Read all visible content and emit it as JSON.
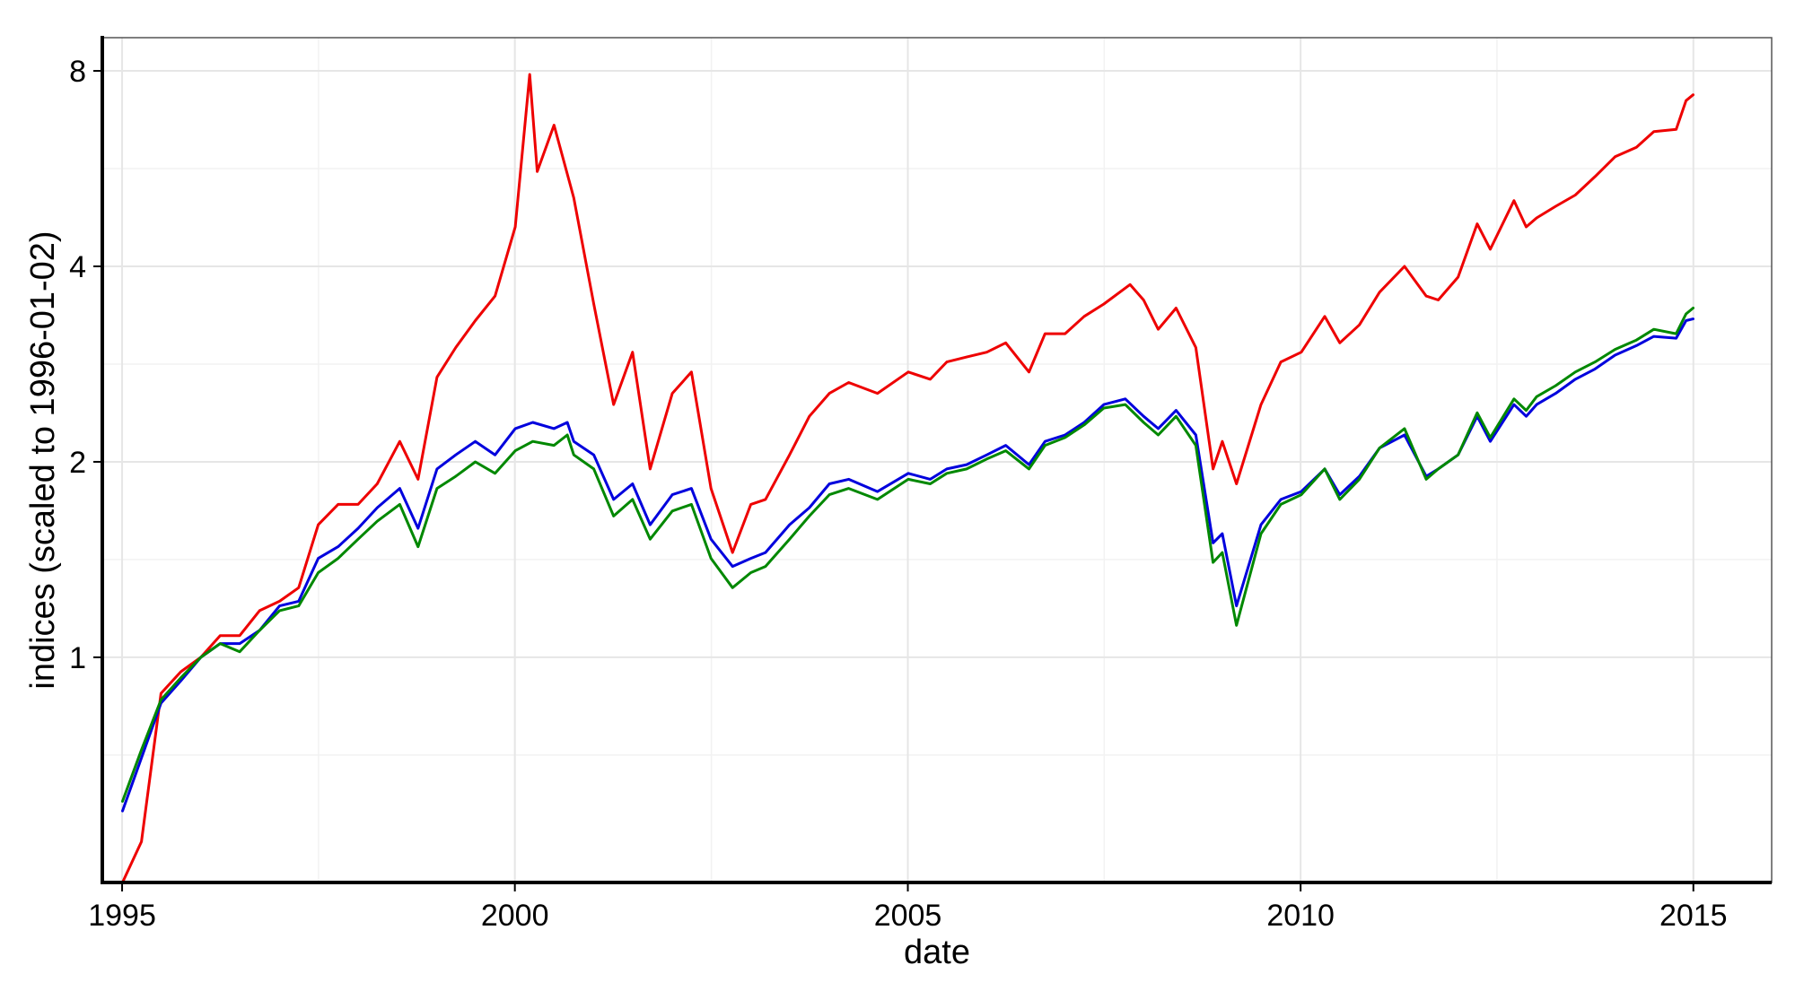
{
  "chart_data": {
    "type": "line",
    "title": "",
    "xlabel": "date",
    "ylabel": "indices (scaled to 1996-01-02)",
    "x_type": "date",
    "xlim": [
      "1994-10-01",
      "2015-12-31"
    ],
    "ylim": [
      0.45,
      9.0
    ],
    "y_scale": "log2",
    "x_ticks": [
      "1995",
      "2000",
      "2005",
      "2010",
      "2015"
    ],
    "y_ticks": [
      "1",
      "2",
      "4",
      "8"
    ],
    "grid": true,
    "legend": "none",
    "colors": {
      "red": "#ee0000",
      "blue": "#0000dd",
      "green": "#008800"
    },
    "series": [
      {
        "color": "#ee0000",
        "x": [
          "1995-01-03",
          "1995-04-01",
          "1995-07-01",
          "1995-10-01",
          "1996-01-02",
          "1996-04-01",
          "1996-07-01",
          "1996-10-01",
          "1997-01-02",
          "1997-04-01",
          "1997-07-01",
          "1997-10-01",
          "1998-01-02",
          "1998-04-01",
          "1998-07-15",
          "1998-10-08",
          "1999-01-04",
          "1999-04-01",
          "1999-07-01",
          "1999-10-01",
          "2000-01-03",
          "2000-03-10",
          "2000-04-14",
          "2000-07-01",
          "2000-10-01",
          "2001-01-02",
          "2001-04-04",
          "2001-07-01",
          "2001-09-21",
          "2002-01-02",
          "2002-04-01",
          "2002-07-01",
          "2002-10-09",
          "2003-01-02",
          "2003-03-11",
          "2003-07-01",
          "2003-10-01",
          "2004-01-02",
          "2004-04-01",
          "2004-08-13",
          "2005-01-03",
          "2005-04-15",
          "2005-07-01",
          "2005-10-01",
          "2006-01-03",
          "2006-04-01",
          "2006-07-18",
          "2006-10-01",
          "2007-01-02",
          "2007-04-01",
          "2007-07-01",
          "2007-10-31",
          "2008-01-02",
          "2008-03-10",
          "2008-06-01",
          "2008-09-01",
          "2008-11-20",
          "2009-01-02",
          "2009-03-09",
          "2009-07-01",
          "2009-10-01",
          "2010-01-04",
          "2010-04-23",
          "2010-07-02",
          "2010-10-01",
          "2011-01-03",
          "2011-04-29",
          "2011-08-08",
          "2011-10-03",
          "2012-01-03",
          "2012-04-01",
          "2012-06-01",
          "2012-09-19",
          "2012-11-15",
          "2013-01-02",
          "2013-04-01",
          "2013-07-01",
          "2013-10-01",
          "2014-01-02",
          "2014-04-11",
          "2014-07-01",
          "2014-10-13",
          "2014-11-28",
          "2014-12-31"
        ],
        "y": [
          0.45,
          0.52,
          0.88,
          0.95,
          1.0,
          1.08,
          1.08,
          1.18,
          1.22,
          1.28,
          1.6,
          1.72,
          1.72,
          1.85,
          2.15,
          1.88,
          2.7,
          3.0,
          3.3,
          3.6,
          4.6,
          7.9,
          5.6,
          6.6,
          5.1,
          3.5,
          2.45,
          2.95,
          1.95,
          2.55,
          2.75,
          1.82,
          1.45,
          1.72,
          1.75,
          2.05,
          2.35,
          2.55,
          2.65,
          2.55,
          2.75,
          2.68,
          2.85,
          2.9,
          2.95,
          3.05,
          2.75,
          3.15,
          3.15,
          3.35,
          3.5,
          3.75,
          3.55,
          3.2,
          3.45,
          3.0,
          1.95,
          2.15,
          1.85,
          2.45,
          2.85,
          2.95,
          3.35,
          3.05,
          3.25,
          3.65,
          4.0,
          3.6,
          3.55,
          3.85,
          4.65,
          4.25,
          5.05,
          4.6,
          4.75,
          4.95,
          5.15,
          5.5,
          5.9,
          6.1,
          6.45,
          6.5,
          7.2,
          7.35
        ]
      },
      {
        "color": "#0000dd",
        "x": [
          "1995-01-03",
          "1995-04-01",
          "1995-07-01",
          "1995-10-01",
          "1996-01-02",
          "1996-04-01",
          "1996-07-01",
          "1996-10-01",
          "1997-01-02",
          "1997-04-01",
          "1997-07-01",
          "1997-10-01",
          "1998-01-02",
          "1998-04-01",
          "1998-07-15",
          "1998-10-08",
          "1999-01-04",
          "1999-04-01",
          "1999-07-01",
          "1999-10-01",
          "2000-01-03",
          "2000-03-24",
          "2000-07-01",
          "2000-09-01",
          "2000-10-01",
          "2001-01-02",
          "2001-04-04",
          "2001-07-01",
          "2001-09-21",
          "2002-01-02",
          "2002-04-01",
          "2002-07-01",
          "2002-10-09",
          "2003-01-02",
          "2003-03-11",
          "2003-07-01",
          "2003-10-01",
          "2004-01-02",
          "2004-04-01",
          "2004-08-13",
          "2005-01-03",
          "2005-04-15",
          "2005-07-01",
          "2005-10-01",
          "2006-01-03",
          "2006-04-01",
          "2006-07-18",
          "2006-10-01",
          "2007-01-02",
          "2007-04-01",
          "2007-07-01",
          "2007-10-09",
          "2008-01-02",
          "2008-03-10",
          "2008-06-01",
          "2008-09-01",
          "2008-11-20",
          "2009-01-02",
          "2009-03-09",
          "2009-07-01",
          "2009-10-01",
          "2010-01-04",
          "2010-04-23",
          "2010-07-02",
          "2010-10-01",
          "2011-01-03",
          "2011-04-29",
          "2011-08-08",
          "2011-10-03",
          "2012-01-03",
          "2012-04-01",
          "2012-06-01",
          "2012-09-19",
          "2012-11-15",
          "2013-01-02",
          "2013-04-01",
          "2013-07-01",
          "2013-10-01",
          "2014-01-02",
          "2014-04-11",
          "2014-07-01",
          "2014-10-13",
          "2014-11-28",
          "2014-12-31"
        ],
        "y": [
          0.58,
          0.7,
          0.85,
          0.92,
          1.0,
          1.05,
          1.05,
          1.1,
          1.2,
          1.22,
          1.42,
          1.48,
          1.58,
          1.7,
          1.82,
          1.58,
          1.95,
          2.05,
          2.15,
          2.05,
          2.25,
          2.3,
          2.25,
          2.3,
          2.15,
          2.05,
          1.75,
          1.85,
          1.6,
          1.78,
          1.82,
          1.52,
          1.38,
          1.42,
          1.45,
          1.6,
          1.7,
          1.85,
          1.88,
          1.8,
          1.92,
          1.88,
          1.95,
          1.98,
          2.05,
          2.12,
          1.98,
          2.15,
          2.2,
          2.3,
          2.45,
          2.5,
          2.35,
          2.25,
          2.4,
          2.2,
          1.5,
          1.55,
          1.2,
          1.6,
          1.75,
          1.8,
          1.95,
          1.78,
          1.9,
          2.1,
          2.2,
          1.9,
          1.95,
          2.05,
          2.35,
          2.15,
          2.45,
          2.35,
          2.45,
          2.55,
          2.68,
          2.78,
          2.92,
          3.02,
          3.12,
          3.1,
          3.3,
          3.32
        ]
      },
      {
        "color": "#008800",
        "x": [
          "1995-01-03",
          "1995-04-01",
          "1995-07-01",
          "1995-10-01",
          "1996-01-02",
          "1996-04-01",
          "1996-07-01",
          "1996-10-01",
          "1997-01-02",
          "1997-04-01",
          "1997-07-01",
          "1997-10-01",
          "1998-01-02",
          "1998-04-01",
          "1998-07-15",
          "1998-10-08",
          "1999-01-04",
          "1999-04-01",
          "1999-07-01",
          "1999-10-01",
          "2000-01-03",
          "2000-03-24",
          "2000-07-01",
          "2000-09-01",
          "2000-10-01",
          "2001-01-02",
          "2001-04-04",
          "2001-07-01",
          "2001-09-21",
          "2002-01-02",
          "2002-04-01",
          "2002-07-01",
          "2002-10-09",
          "2003-01-02",
          "2003-03-11",
          "2003-07-01",
          "2003-10-01",
          "2004-01-02",
          "2004-04-01",
          "2004-08-13",
          "2005-01-03",
          "2005-04-15",
          "2005-07-01",
          "2005-10-01",
          "2006-01-03",
          "2006-04-01",
          "2006-07-18",
          "2006-10-01",
          "2007-01-02",
          "2007-04-01",
          "2007-07-01",
          "2007-10-09",
          "2008-01-02",
          "2008-03-10",
          "2008-06-01",
          "2008-09-01",
          "2008-11-20",
          "2009-01-02",
          "2009-03-09",
          "2009-07-01",
          "2009-10-01",
          "2010-01-04",
          "2010-04-23",
          "2010-07-02",
          "2010-10-01",
          "2011-01-03",
          "2011-04-29",
          "2011-08-08",
          "2011-10-03",
          "2012-01-03",
          "2012-04-01",
          "2012-06-01",
          "2012-09-19",
          "2012-11-15",
          "2013-01-02",
          "2013-04-01",
          "2013-07-01",
          "2013-10-01",
          "2014-01-02",
          "2014-04-11",
          "2014-07-01",
          "2014-10-13",
          "2014-11-28",
          "2014-12-31"
        ],
        "y": [
          0.6,
          0.72,
          0.86,
          0.93,
          1.0,
          1.05,
          1.02,
          1.1,
          1.18,
          1.2,
          1.35,
          1.42,
          1.52,
          1.62,
          1.72,
          1.48,
          1.82,
          1.9,
          2.0,
          1.92,
          2.08,
          2.15,
          2.12,
          2.2,
          2.05,
          1.95,
          1.65,
          1.75,
          1.52,
          1.68,
          1.72,
          1.42,
          1.28,
          1.35,
          1.38,
          1.52,
          1.65,
          1.78,
          1.82,
          1.75,
          1.88,
          1.85,
          1.92,
          1.95,
          2.02,
          2.08,
          1.95,
          2.12,
          2.18,
          2.28,
          2.42,
          2.45,
          2.3,
          2.2,
          2.35,
          2.12,
          1.4,
          1.45,
          1.12,
          1.55,
          1.72,
          1.78,
          1.95,
          1.75,
          1.88,
          2.1,
          2.25,
          1.88,
          1.95,
          2.05,
          2.38,
          2.18,
          2.5,
          2.4,
          2.52,
          2.62,
          2.75,
          2.85,
          2.98,
          3.08,
          3.2,
          3.15,
          3.38,
          3.45
        ]
      }
    ]
  }
}
